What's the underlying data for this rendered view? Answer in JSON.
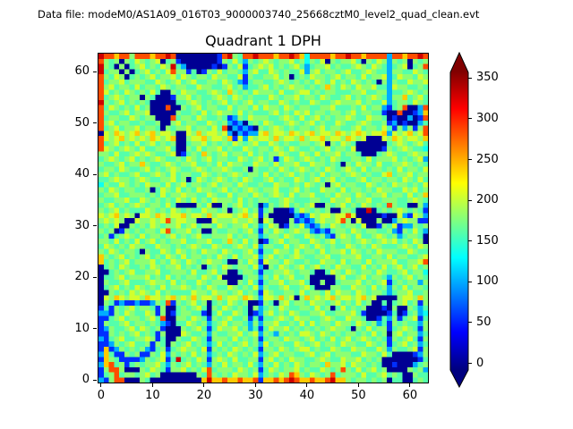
{
  "figure": {
    "header": "Data file: modeM0/AS1A09_016T03_9000003740_25668cztM0_level2_quad_clean.evt",
    "title": "Quadrant 1 DPH"
  },
  "chart_data": {
    "type": "heatmap",
    "title": "Quadrant 1 DPH",
    "grid_size": 64,
    "x_ticks": [
      0,
      10,
      20,
      30,
      40,
      50,
      60
    ],
    "y_ticks": [
      0,
      10,
      20,
      30,
      40,
      50,
      60
    ],
    "colormap": "jet",
    "vmin": -7,
    "vmax": 358,
    "colorbar_ticks": [
      0,
      50,
      100,
      150,
      200,
      250,
      300,
      350
    ],
    "colorbar_extend": "both",
    "jet_stops": [
      "#000080",
      "#0000ff",
      "#00ffff",
      "#ffff00",
      "#ff0000",
      "#800000"
    ],
    "value_palette": {
      "0": 0,
      "1": 55,
      "2": 100,
      "3": 135,
      "4": 160,
      "5": 180,
      "6": 205,
      "7": 240,
      "8": 285,
      "9": 330
    },
    "grid_rows_top_to_bottom": [
      "9887885888788980000000018954889888788987388887889887888828878898",
      "8545054654560451000000015464254565455645354605455640546525450545",
      "9540504564546594200000101546145656454564245564544565465424560458",
      "9455050456454685514015464554256446545446256455456445654425544654",
      "8546504545645564654554655446154455645045465545645546455624655465",
      "8455645554465456456445546542145544565454546546454654540525446556",
      "8564554645546545544655445645244564545655454575465465564426554454",
      "8645465454640054655445654754546555464456645455444556445524456545",
      "8456545505400015564544565465454446545564554654456454565425574564",
      "9545645454000004456545456454564554465454465445655564544624554654",
      "8465454645000800545645544645546465546545544556444546455214580028",
      "8544564556000005445464565546454445645465645545545645544100800127",
      "8455446545500084554654454125465554456546456454556544655401002018",
      "8564554454450056455446545212045465445654564544654456544512010024",
      "8456455645540545564554648021210545654545545645544564554641525158",
      "0657656756756650065756656202122675665765675665765676566726567568",
      "8656756565765670056675665716265665756657566756657656000657656657",
      "8456454645645450045564545465456446545445545605465400000045654564",
      "8654565464455640054645564544654554654654454564554600000154565443",
      "5546445656544560145475456455464545565446546455645540004565445655",
      "4565456454565445465456455446545645146545654546544554645556454562",
      "5445645575445654556445464655446554645564465545405465546445565454",
      "4554654456454565445654556544505445465456545465456546455454645546",
      "5645445644565464554465454565455464545645454645545654544674556455",
      "4456554565445564504654565454654456454465456456454456455455465464",
      "3544654546554645645545645546544544655454654505645544654546554546",
      "5465455445046546454655456454565455644564544655464554546554465645",
      "4556445554546455655446544645546545654645564454655465455645546457",
      "5445564465454546546454655546454554456544455446556455644555445654",
      "4564545654554640000546005456454025456454560054564546545485440052",
      "5456454446545465454465545045645145000146545450055400904545654541",
      "6567565066576566756657566656756150000021265665668600000100621652",
      "5656500655656856655000655565565065000512125655685060005002565511",
      "4546005454654556456455465455645246501546212546545546001546122545",
      "5450154545546845564500544554564154654565521214554654554452154642",
      "4514565464554564545644555645455245546544654521565464456545245540",
      "5546454645645455644556445754645014564554465456455456545656454650",
      "4654546554465545456544654456546255446456546545446545465444565465",
      "5465455405446546545465546544564144655464554645564654546555446544",
      "7545645456454654645545465464556256454565445564455564455464554456",
      "7454564555645465465456554005465165546544544655464554645556445568",
      "0454654454654556454504546545546205465456456454655446454645645645",
      "0045456445564455546445645004554144556545540046546545546544564553",
      "0445645556454645455465460000455254645644500000564456455425456454",
      "0544564445655464544654555005464145564556400500455564545614545525",
      "0456454654546455654546544654546254456445640005544655464525464554",
      "0054546565464544446554655456454165445546455464655465455424556445",
      "0657656657665675657566575665765266575605756567566567560000566575",
      "0541211211254815456450454654500154056455465545645464500404564515",
      "1415456455415004545640546545405245465445546450464545000105005424",
      "2215465446515014554410464465401256454654455644555641000014014523",
      "1145645545648005546541545644514144565465544565446554001425145614",
      "1544564554542104465452456455425255644546464554655465452415454425",
      "1254456465451000545641465564524146556454545456554054645514565415",
      "1154545645415000654452544556456254254546654654545545464505645524",
      "2145644556514005446541555464545145546554564546456456545415456415",
      "1125456445154054564542464545645264554465456455465544654514564524",
      "1712545452145145655461545465454155465456645446544655446525445615",
      "2741154511546254546452454654546245645544564564555446554640000125",
      "1754111125456149454651565464455156454655445654465564545000000014",
      "2784514545564254564542546455464254645465455475564655454001000245",
      "1588500054654155645468455546545146545564544654585464564500005452",
      "1458455456450000000548545465546245465875465458455546445645400544",
      "2158800054000000000079778778778177878987787789775455454504400454"
    ]
  }
}
